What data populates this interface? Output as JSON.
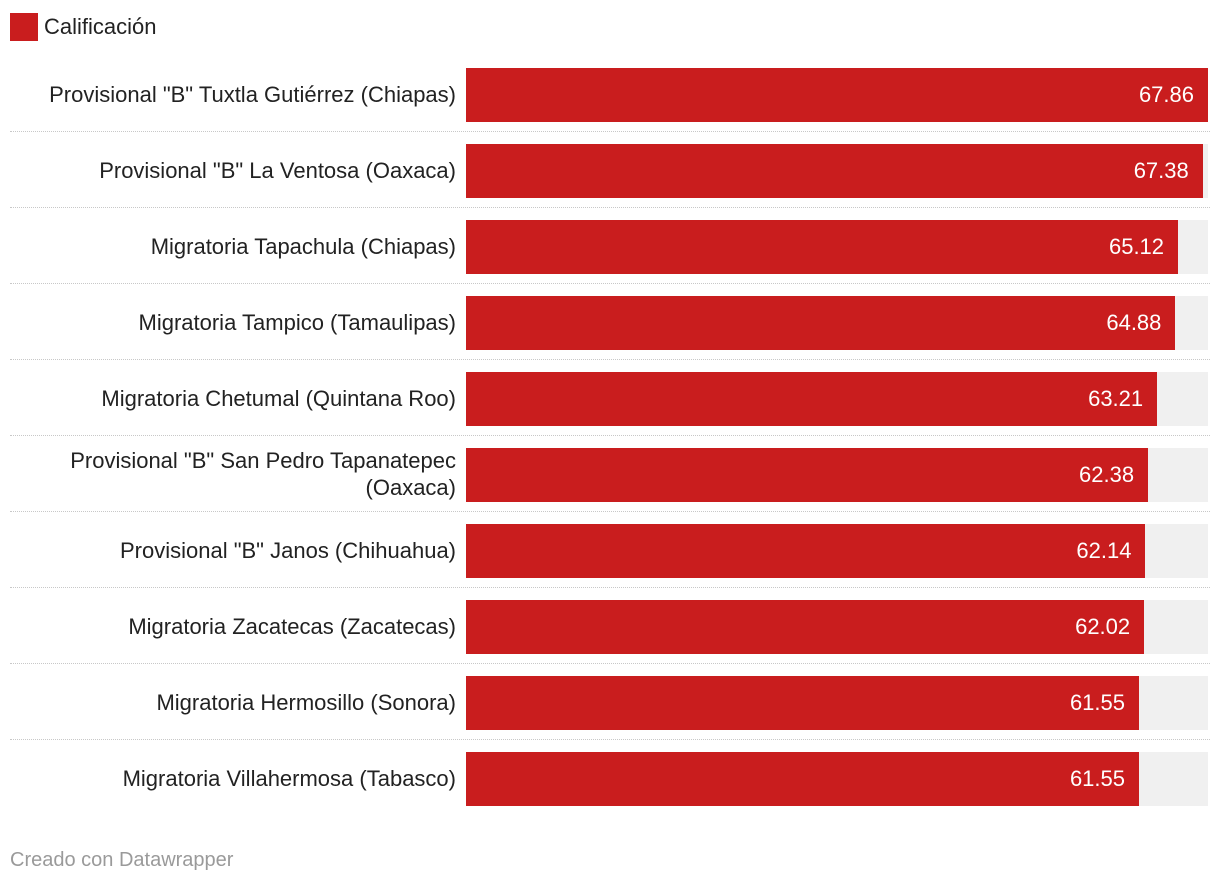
{
  "legend": {
    "label": "Calificación",
    "color": "#c91d1e"
  },
  "footer": {
    "credit": "Creado con Datawrapper"
  },
  "colors": {
    "bar": "#c91d1e",
    "track": "#f0f0f0",
    "divider": "#c8c8c8"
  },
  "chart_data": {
    "type": "bar",
    "orientation": "horizontal",
    "categories": [
      "Provisional \"B\" Tuxtla Gutiérrez (Chiapas)",
      "Provisional \"B\" La Ventosa (Oaxaca)",
      "Migratoria Tapachula (Chiapas)",
      "Migratoria Tampico (Tamaulipas)",
      "Migratoria Chetumal (Quintana Roo)",
      "Provisional \"B\" San Pedro Tapanatepec (Oaxaca)",
      "Provisional \"B\" Janos (Chihuahua)",
      "Migratoria Zacatecas (Zacatecas)",
      "Migratoria Hermosillo (Sonora)",
      "Migratoria Villahermosa (Tabasco)"
    ],
    "series": [
      {
        "name": "Calificación",
        "values": [
          67.86,
          67.38,
          65.12,
          64.88,
          63.21,
          62.38,
          62.14,
          62.02,
          61.55,
          61.55
        ],
        "labels": [
          "67.86",
          "67.38",
          "65.12",
          "64.88",
          "63.21",
          "62.38",
          "62.14",
          "62.02",
          "61.55",
          "61.55"
        ]
      }
    ],
    "xlim": [
      0,
      67.86
    ],
    "grid": false,
    "legend_position": "top-left"
  }
}
